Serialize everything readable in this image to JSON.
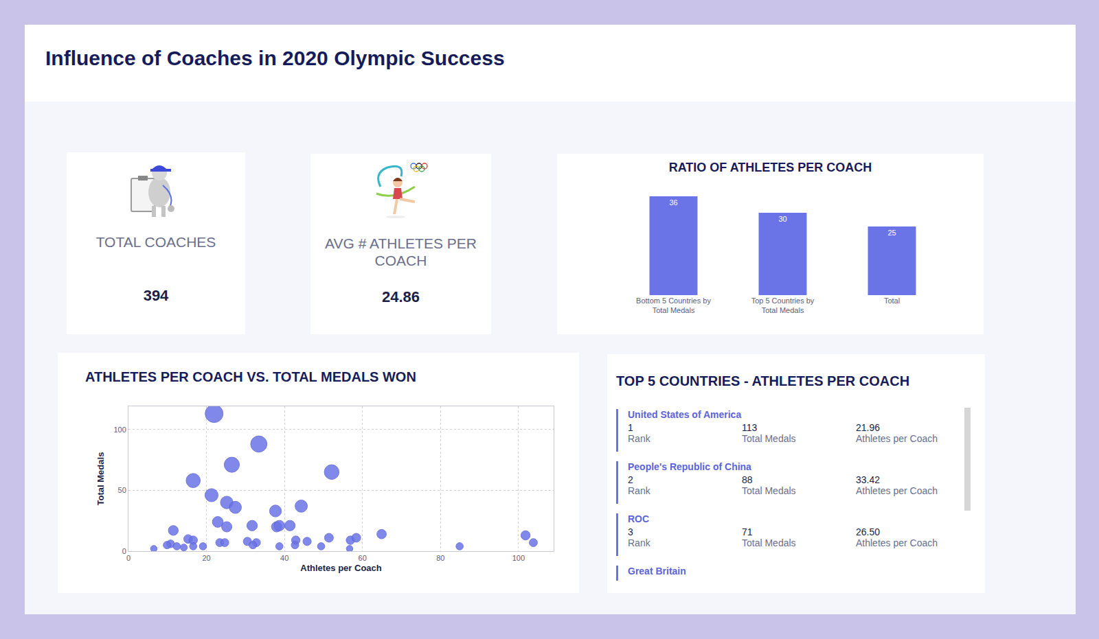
{
  "title": "Influence of Coaches in 2020 Olympic Success",
  "kpis": [
    {
      "label": "TOTAL COACHES",
      "value": 394
    },
    {
      "label": "AVG # ATHLETES PER COACH",
      "value": 24.86
    }
  ],
  "chart_data": [
    {
      "type": "bar",
      "title": "RATIO OF ATHLETES PER COACH",
      "categories": [
        "Bottom 5 Countries by Total Medals",
        "Top 5 Countries by Total Medals",
        "Total"
      ],
      "values": [
        36,
        30,
        25
      ],
      "color": "#6b74e6",
      "ylim": [
        0,
        40
      ],
      "data_labels": true,
      "tick_labels": "x",
      "grid": false
    },
    {
      "type": "scatter",
      "title": "ATHLETES PER COACH VS. TOTAL MEDALS WON",
      "x_label": "Athletes per Coach",
      "y_label": "Total Medals",
      "x": [
        21.96,
        33.42,
        26.5,
        16.6,
        52.1,
        21.3,
        25.2,
        27.4,
        37.7,
        44.3,
        22.9,
        25.2,
        31.7,
        11.5,
        38,
        38.7,
        41.4,
        15.3,
        16.6,
        10.8,
        9.9,
        12.4,
        14.2,
        16.6,
        19.1,
        6.5,
        23.4,
        24.7,
        30.5,
        32.8,
        31.9,
        38.7,
        42.9,
        42.7,
        45.8,
        49.4,
        51.4,
        56.9,
        56.7,
        58.4,
        64.9,
        84.9,
        101.8,
        103.8
      ],
      "values": [
        113,
        88,
        71,
        58,
        65,
        46,
        40,
        36,
        33,
        37,
        24,
        20,
        21,
        17,
        20,
        21,
        21,
        10,
        9,
        6,
        5,
        4,
        3,
        4,
        4,
        2,
        7,
        7,
        8,
        7,
        5,
        4,
        9,
        5,
        8,
        4,
        11,
        9,
        2,
        11,
        14,
        4,
        13,
        7
      ],
      "size": [
        113,
        88,
        71,
        58,
        65,
        46,
        40,
        36,
        33,
        37,
        24,
        20,
        21,
        17,
        20,
        21,
        21,
        10,
        9,
        6,
        5,
        4,
        3,
        4,
        4,
        2,
        7,
        7,
        8,
        7,
        5,
        4,
        9,
        5,
        8,
        4,
        11,
        9,
        2,
        11,
        14,
        4,
        13,
        7
      ],
      "color": "#6b74e6",
      "marker": "circle",
      "xlim": [
        0,
        109
      ],
      "ylim": [
        0,
        119
      ],
      "xticks": [
        0,
        20,
        40,
        60,
        80,
        100
      ],
      "yticks": [
        0,
        50,
        100
      ],
      "grid": true
    }
  ],
  "top5_list": {
    "title": "TOP 5 COUNTRIES - ATHLETES PER COACH",
    "fields": [
      "Rank",
      "Total Medals",
      "Athletes per Coach"
    ],
    "rows": [
      {
        "country": "United States of America",
        "values": [
          1,
          113,
          "21.96"
        ]
      },
      {
        "country": "People's Republic of China",
        "values": [
          2,
          88,
          "33.42"
        ]
      },
      {
        "country": "ROC",
        "values": [
          3,
          71,
          "26.50"
        ]
      },
      {
        "country": "Great Britain"
      }
    ]
  }
}
